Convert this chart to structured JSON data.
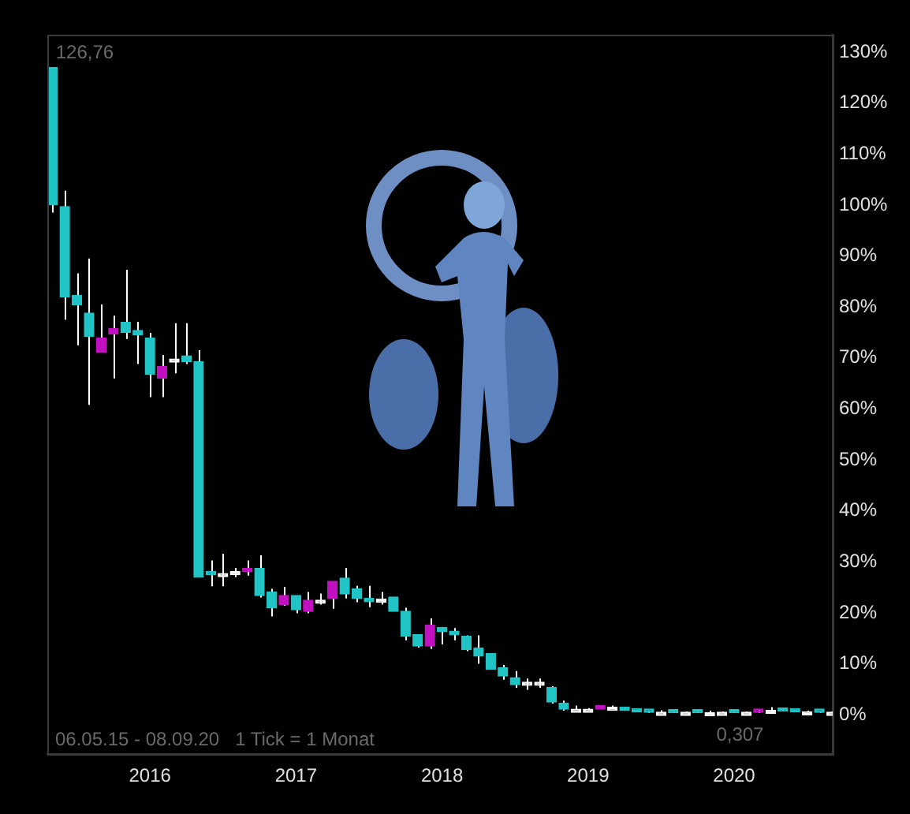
{
  "chart_data": {
    "type": "candlestick",
    "x": [
      "2015-05",
      "2015-06",
      "2015-07",
      "2015-08",
      "2015-09",
      "2015-10",
      "2015-11",
      "2015-12",
      "2016-01",
      "2016-02",
      "2016-03",
      "2016-04",
      "2016-05",
      "2016-06",
      "2016-07",
      "2016-08",
      "2016-09",
      "2016-10",
      "2016-11",
      "2016-12",
      "2017-01",
      "2017-02",
      "2017-03",
      "2017-04",
      "2017-05",
      "2017-06",
      "2017-07",
      "2017-08",
      "2017-09",
      "2017-10",
      "2017-11",
      "2017-12",
      "2018-01",
      "2018-02",
      "2018-03",
      "2018-04",
      "2018-05",
      "2018-06",
      "2018-07",
      "2018-08",
      "2018-09",
      "2018-10",
      "2018-11",
      "2018-12",
      "2019-01",
      "2019-02",
      "2019-03",
      "2019-04",
      "2019-05",
      "2019-06",
      "2019-07",
      "2019-08",
      "2019-09",
      "2019-10",
      "2019-11",
      "2019-12",
      "2020-01",
      "2020-02",
      "2020-03",
      "2020-04",
      "2020-05",
      "2020-06",
      "2020-07",
      "2020-08",
      "2020-09"
    ],
    "ohlc": [
      [
        127,
        127,
        98.5,
        100
      ],
      [
        99.7,
        102.8,
        77.5,
        82
      ],
      [
        82.3,
        86.6,
        72.5,
        80.4
      ],
      [
        78.8,
        89.5,
        60.8,
        74.2
      ],
      [
        71.1,
        80.5,
        71.1,
        73.9
      ],
      [
        74.7,
        78.3,
        66,
        75.8
      ],
      [
        77,
        87.3,
        73.7,
        75
      ],
      [
        75.4,
        77.1,
        68.8,
        74.5
      ],
      [
        73.9,
        74.9,
        62.3,
        66.8
      ],
      [
        66,
        70.6,
        62.3,
        68.3
      ],
      [
        69.8,
        76.8,
        67,
        69.8
      ],
      [
        70.4,
        76.8,
        68.8,
        69.3
      ],
      [
        69.3,
        71.5,
        27,
        27
      ],
      [
        28.1,
        30.3,
        25.2,
        27.5
      ],
      [
        27.7,
        31.6,
        25.2,
        27.7
      ],
      [
        28.1,
        28.8,
        27,
        28.1
      ],
      [
        28.1,
        30.3,
        27.3,
        28.7
      ],
      [
        28.7,
        31.3,
        23,
        23.4
      ],
      [
        24.1,
        24.7,
        19.3,
        21
      ],
      [
        21.6,
        25.1,
        21.4,
        23.4
      ],
      [
        23.4,
        23.4,
        19.9,
        20.6
      ],
      [
        20.3,
        24.1,
        19.9,
        22.5
      ],
      [
        22.5,
        23.8,
        21.6,
        22.5
      ],
      [
        22.8,
        26.2,
        20.8,
        26.2
      ],
      [
        26.8,
        28.8,
        22.8,
        23.7
      ],
      [
        24.7,
        25.3,
        22.1,
        22.8
      ],
      [
        22.8,
        25.3,
        21.1,
        22.2
      ],
      [
        22.7,
        24.1,
        21.6,
        22.7
      ],
      [
        23.1,
        23.1,
        20.3,
        20.3
      ],
      [
        20.3,
        21,
        14.6,
        15.4
      ],
      [
        15.7,
        15.7,
        13.2,
        13.5
      ],
      [
        13.5,
        18.9,
        12.9,
        17.6
      ],
      [
        17.1,
        17.2,
        13.8,
        16.3
      ],
      [
        16.4,
        17,
        14.6,
        15.7
      ],
      [
        15.4,
        15.6,
        12.5,
        12.8
      ],
      [
        13.1,
        15.6,
        10,
        11.5
      ],
      [
        12,
        12,
        8.9,
        8.9
      ],
      [
        9.2,
        9.8,
        6.9,
        7.6
      ],
      [
        7.3,
        8.6,
        5.3,
        5.9
      ],
      [
        6.4,
        7.1,
        4.9,
        6.4
      ],
      [
        6.4,
        7.1,
        5.3,
        6.4
      ],
      [
        5.4,
        5.6,
        2.2,
        2.5
      ],
      [
        2.3,
        2.8,
        0.8,
        1.1
      ],
      [
        1.1,
        1.8,
        1,
        1.1
      ],
      [
        1.1,
        1.3,
        0.9,
        1.1
      ],
      [
        1.1,
        1.8,
        1.1,
        1.8
      ],
      [
        1.5,
        1.8,
        1.1,
        1.5
      ],
      [
        1.5,
        1.5,
        0.9,
        0.9
      ],
      [
        0.9,
        0.9,
        0.6,
        0.6
      ],
      [
        0.6,
        0.8,
        0.4,
        0.5
      ],
      [
        0.5,
        0.9,
        0.4,
        0.5
      ],
      [
        0.5,
        0.7,
        0.4,
        0.4
      ],
      [
        0.5,
        0.6,
        0.4,
        0.5
      ],
      [
        0.6,
        0.7,
        0.4,
        0.4
      ],
      [
        0.4,
        0.8,
        0.4,
        0.4
      ],
      [
        0.5,
        0.6,
        0.4,
        0.5
      ],
      [
        0.5,
        0.7,
        0.4,
        0.4
      ],
      [
        0.5,
        0.6,
        0.3,
        0.5
      ],
      [
        0.5,
        1.1,
        0.4,
        0.8
      ],
      [
        0.9,
        1.5,
        0.7,
        0.9
      ],
      [
        0.9,
        1,
        0.7,
        0.7
      ],
      [
        0.7,
        0.8,
        0.5,
        0.6
      ],
      [
        0.6,
        0.8,
        0.5,
        0.6
      ],
      [
        0.6,
        0.7,
        0.4,
        0.5
      ],
      [
        0.5,
        0.6,
        0.4,
        0.5
      ]
    ],
    "colors": [
      "#20c4c4",
      "#20c4c4",
      "#20c4c4",
      "#20c4c4",
      "#c010c0",
      "#c010c0",
      "#20c4c4",
      "#20c4c4",
      "#20c4c4",
      "#c010c0",
      "#ffffff",
      "#20c4c4",
      "#20c4c4",
      "#20c4c4",
      "#ffffff",
      "#ffffff",
      "#c010c0",
      "#20c4c4",
      "#20c4c4",
      "#c010c0",
      "#20c4c4",
      "#c010c0",
      "#ffffff",
      "#c010c0",
      "#20c4c4",
      "#20c4c4",
      "#20c4c4",
      "#ffffff",
      "#20c4c4",
      "#20c4c4",
      "#20c4c4",
      "#c010c0",
      "#20c4c4",
      "#20c4c4",
      "#20c4c4",
      "#20c4c4",
      "#20c4c4",
      "#20c4c4",
      "#20c4c4",
      "#ffffff",
      "#ffffff",
      "#20c4c4",
      "#20c4c4",
      "#ffffff",
      "#ffffff",
      "#c010c0",
      "#ffffff",
      "#20c4c4",
      "#20c4c4",
      "#20c4c4",
      "#ffffff",
      "#20c4c4",
      "#ffffff",
      "#20c4c4",
      "#ffffff",
      "#ffffff",
      "#20c4c4",
      "#ffffff",
      "#c010c0",
      "#ffffff",
      "#20c4c4",
      "#20c4c4",
      "#ffffff",
      "#20c4c4",
      "#ffffff"
    ],
    "xlim": [
      "2015-04-18",
      "2020-09-04"
    ],
    "xticks": [
      "2016",
      "2017",
      "2018",
      "2019",
      "2020"
    ],
    "ylim": [
      -7.7,
      133.4
    ],
    "yticks": [
      {
        "value": 0,
        "label": "0%"
      },
      {
        "value": 10,
        "label": "10%"
      },
      {
        "value": 20,
        "label": "20%"
      },
      {
        "value": 30,
        "label": "30%"
      },
      {
        "value": 40,
        "label": "40%"
      },
      {
        "value": 50,
        "label": "50%"
      },
      {
        "value": 60,
        "label": "60%"
      },
      {
        "value": 70,
        "label": "70%"
      },
      {
        "value": 80,
        "label": "80%"
      },
      {
        "value": 90,
        "label": "90%"
      },
      {
        "value": 100,
        "label": "100%"
      },
      {
        "value": 110,
        "label": "110%"
      },
      {
        "value": 120,
        "label": "120%"
      },
      {
        "value": 130,
        "label": "130%"
      }
    ],
    "grid": false,
    "legend": false,
    "annotations": [
      {
        "text": "126,76",
        "x": "2015-05",
        "y": 127
      },
      {
        "text": "0,307",
        "x": "2020-02",
        "y": 0.3
      },
      "06.05.15 - 08.09.20   1 Tick = 1 Monat"
    ]
  }
}
